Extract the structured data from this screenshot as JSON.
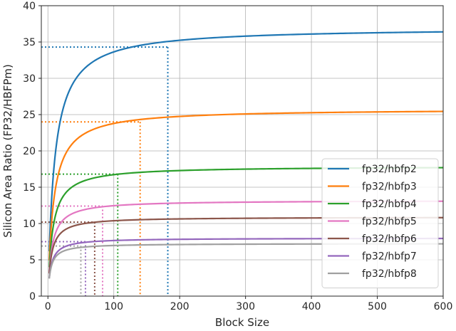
{
  "chart_data": {
    "type": "line",
    "xlabel": "Block Size",
    "ylabel": "Silicon Area Ratio (FP32/HBFPm)",
    "xlim": [
      -10,
      600
    ],
    "ylim": [
      0,
      40
    ],
    "xticks": [
      0,
      100,
      200,
      300,
      400,
      500,
      600
    ],
    "yticks": [
      0,
      5,
      10,
      15,
      20,
      25,
      30,
      35,
      40
    ],
    "grid": true,
    "legend_position": "lower-right",
    "series": [
      {
        "name": "fp32/hbfp2",
        "color": "#1f77b4",
        "asymptote": 37.0,
        "k": 10,
        "min_x": 2,
        "marker_x": 182,
        "marker_y": 34.3
      },
      {
        "name": "fp32/hbfp3",
        "color": "#ff7f0e",
        "asymptote": 25.8,
        "k": 8.5,
        "min_x": 2,
        "marker_x": 140,
        "marker_y": 24.0
      },
      {
        "name": "fp32/hbfp4",
        "color": "#2ca02c",
        "asymptote": 17.9,
        "k": 7,
        "min_x": 2,
        "marker_x": 106,
        "marker_y": 16.8
      },
      {
        "name": "fp32/hbfp5",
        "color": "#e377c2",
        "asymptote": 13.2,
        "k": 6,
        "min_x": 2,
        "marker_x": 83,
        "marker_y": 12.4
      },
      {
        "name": "fp32/hbfp6",
        "color": "#8c564b",
        "asymptote": 10.9,
        "k": 5,
        "min_x": 2,
        "marker_x": 71,
        "marker_y": 10.2
      },
      {
        "name": "fp32/hbfp7",
        "color": "#9467bd",
        "asymptote": 8.0,
        "k": 4.5,
        "min_x": 2,
        "marker_x": 57,
        "marker_y": 7.5
      },
      {
        "name": "fp32/hbfp8",
        "color": "#a0a0a0",
        "asymptote": 7.25,
        "k": 4,
        "min_x": 2,
        "marker_x": 50,
        "marker_y": 6.9
      }
    ]
  }
}
